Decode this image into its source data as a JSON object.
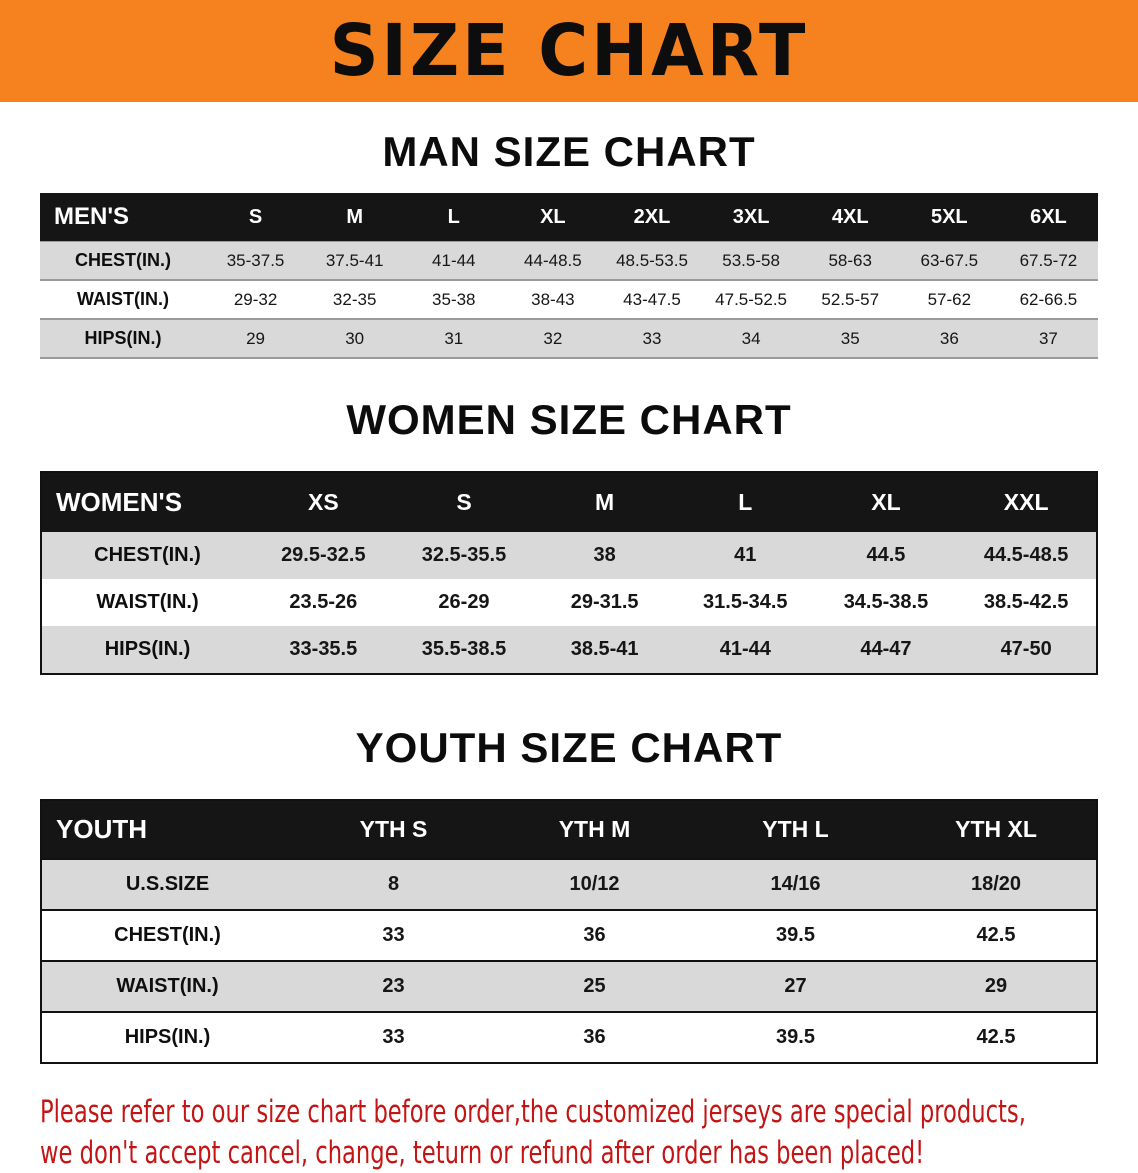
{
  "banner": {
    "title": "SIZE CHART",
    "bg_color": "#f5821f"
  },
  "sections": [
    {
      "title": "MAN SIZE CHART"
    },
    {
      "title": "WOMEN SIZE CHART"
    },
    {
      "title": "YOUTH SIZE CHART"
    }
  ],
  "colors": {
    "header_row_bg": "#151515",
    "stripe_row_bg": "#d9d9d9",
    "notice_text": "#c31515"
  },
  "tables": [
    {
      "id": "mens",
      "header": [
        "MEN'S",
        "S",
        "M",
        "L",
        "XL",
        "2XL",
        "3XL",
        "4XL",
        "5XL",
        "6XL"
      ],
      "rows": [
        [
          "CHEST(IN.)",
          "35-37.5",
          "37.5-41",
          "41-44",
          "44-48.5",
          "48.5-53.5",
          "53.5-58",
          "58-63",
          "63-67.5",
          "67.5-72"
        ],
        [
          "WAIST(IN.)",
          "29-32",
          "32-35",
          "35-38",
          "38-43",
          "43-47.5",
          "47.5-52.5",
          "52.5-57",
          "57-62",
          "62-66.5"
        ],
        [
          "HIPS(IN.)",
          "29",
          "30",
          "31",
          "32",
          "33",
          "34",
          "35",
          "36",
          "37"
        ]
      ]
    },
    {
      "id": "womens",
      "header": [
        "WOMEN'S",
        "XS",
        "S",
        "M",
        "L",
        "XL",
        "XXL"
      ],
      "rows": [
        [
          "CHEST(IN.)",
          "29.5-32.5",
          "32.5-35.5",
          "38",
          "41",
          "44.5",
          "44.5-48.5"
        ],
        [
          "WAIST(IN.)",
          "23.5-26",
          "26-29",
          "29-31.5",
          "31.5-34.5",
          "34.5-38.5",
          "38.5-42.5"
        ],
        [
          "HIPS(IN.)",
          "33-35.5",
          "35.5-38.5",
          "38.5-41",
          "41-44",
          "44-47",
          "47-50"
        ]
      ]
    },
    {
      "id": "youth",
      "header": [
        "YOUTH",
        "YTH S",
        "YTH M",
        "YTH L",
        "YTH XL"
      ],
      "rows": [
        [
          "U.S.SIZE",
          "8",
          "10/12",
          "14/16",
          "18/20"
        ],
        [
          "CHEST(IN.)",
          "33",
          "36",
          "39.5",
          "42.5"
        ],
        [
          "WAIST(IN.)",
          "23",
          "25",
          "27",
          "29"
        ],
        [
          "HIPS(IN.)",
          "33",
          "36",
          "39.5",
          "42.5"
        ]
      ]
    }
  ],
  "notice": {
    "line1": "Please refer to our size chart before order,the customized jerseys are special products,",
    "line2": "we don't accept cancel, change, teturn or refund after order has been placed!"
  }
}
